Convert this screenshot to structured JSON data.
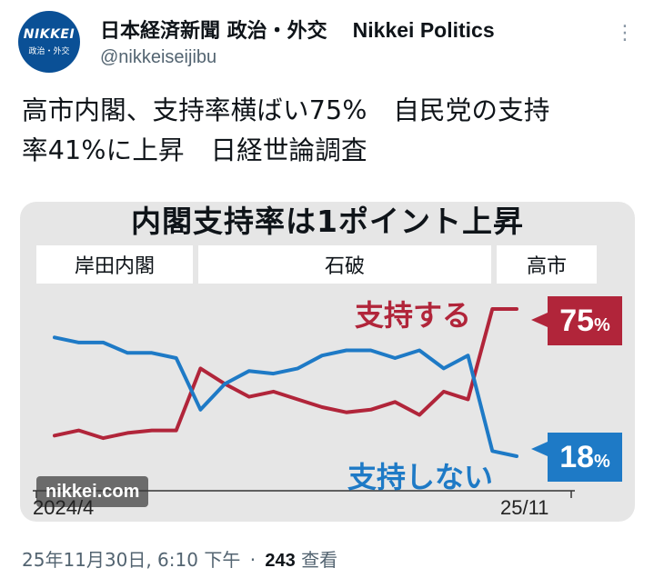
{
  "account": {
    "avatar_text": "NIKKEI",
    "avatar_sub": "政治・外交",
    "display_name": "日本経済新聞 政治・外交",
    "display_name_en": "Nikkei Politics",
    "handle": "@nikkeiseijibu"
  },
  "tweet": {
    "text_line1": "高市内閣、支持率横ばい75%　自民党の支持",
    "text_line2": "率41%に上昇　日経世論調査"
  },
  "meta": {
    "timestamp": "25年11月30日, 6:10 下午",
    "separator": "·",
    "views_count": "243",
    "views_label": "查看"
  },
  "colors": {
    "support": "#b1253a",
    "nonsupport": "#1e7ac6",
    "avatar": "#0a5096"
  },
  "chart_data": {
    "type": "line",
    "title": "内閣支持率は1ポイント上昇",
    "eras": [
      "岸田内閣",
      "石破",
      "高市"
    ],
    "x_tick_labels": [
      "2024/4",
      "25/11"
    ],
    "n_points": 20,
    "series": [
      {
        "name": "支持する",
        "color": "#b1253a",
        "values": [
          26,
          28,
          25,
          27,
          28,
          28,
          52,
          46,
          41,
          43,
          40,
          37,
          35,
          36,
          39,
          34,
          43,
          40,
          75,
          75
        ],
        "end_label": "75",
        "end_unit": "%"
      },
      {
        "name": "支持しない",
        "color": "#1e7ac6",
        "values": [
          64,
          62,
          62,
          58,
          58,
          56,
          36,
          46,
          51,
          50,
          52,
          57,
          59,
          59,
          56,
          59,
          52,
          57,
          20,
          18
        ],
        "end_label": "18",
        "end_unit": "%"
      }
    ],
    "watermark": "nikkei.com"
  }
}
